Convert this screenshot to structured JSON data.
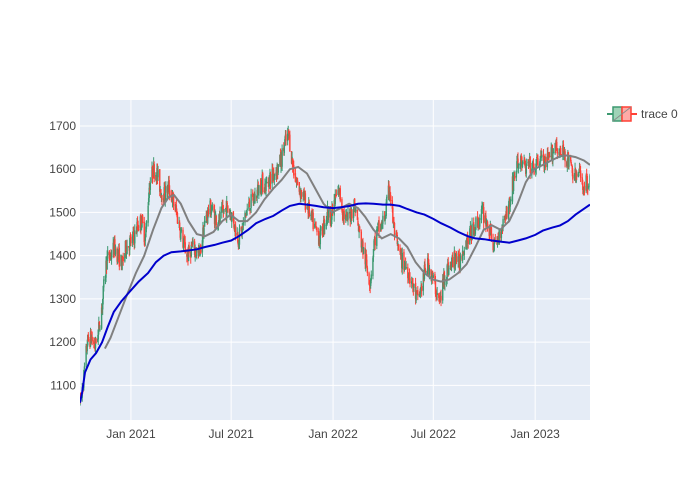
{
  "chart_data": {
    "type": "candlestick",
    "title": "",
    "xlabel": "",
    "ylabel": "",
    "x_range": [
      "2020-10-01",
      "2023-04-10"
    ],
    "ylim": [
      1020,
      1760
    ],
    "grid": true,
    "legend": {
      "position": "top-right",
      "entries": [
        "trace 0"
      ]
    },
    "colors": {
      "increasing": "#3D9970",
      "decreasing": "#FF4136",
      "ma_short": "#808080",
      "ma_long": "#0000CC",
      "plot_bg": "#E5ECF6",
      "grid": "#FFFFFF"
    },
    "x_ticks": [
      {
        "value": "2021-01-01",
        "label": "Jan 2021"
      },
      {
        "value": "2021-07-01",
        "label": "Jul 2021"
      },
      {
        "value": "2022-01-01",
        "label": "Jan 2022"
      },
      {
        "value": "2022-07-01",
        "label": "Jul 2022"
      },
      {
        "value": "2023-01-01",
        "label": "Jan 2023"
      }
    ],
    "y_ticks": [
      1100,
      1200,
      1300,
      1400,
      1500,
      1600,
      1700
    ],
    "series": [
      {
        "name": "trace 0",
        "kind": "ohlc",
        "price_path": [
          [
            "2020-10-01",
            1060
          ],
          [
            "2020-10-07",
            1110
          ],
          [
            "2020-10-14",
            1200
          ],
          [
            "2020-10-21",
            1210
          ],
          [
            "2020-10-28",
            1190
          ],
          [
            "2020-11-04",
            1230
          ],
          [
            "2020-11-11",
            1300
          ],
          [
            "2020-11-18",
            1390
          ],
          [
            "2020-11-25",
            1400
          ],
          [
            "2020-12-02",
            1420
          ],
          [
            "2020-12-09",
            1400
          ],
          [
            "2020-12-16",
            1380
          ],
          [
            "2020-12-23",
            1420
          ],
          [
            "2020-12-30",
            1430
          ],
          [
            "2021-01-06",
            1440
          ],
          [
            "2021-01-13",
            1470
          ],
          [
            "2021-01-20",
            1480
          ],
          [
            "2021-01-27",
            1440
          ],
          [
            "2021-02-03",
            1560
          ],
          [
            "2021-02-10",
            1600
          ],
          [
            "2021-02-17",
            1590
          ],
          [
            "2021-02-24",
            1550
          ],
          [
            "2021-03-03",
            1540
          ],
          [
            "2021-03-10",
            1560
          ],
          [
            "2021-03-17",
            1530
          ],
          [
            "2021-03-24",
            1500
          ],
          [
            "2021-03-31",
            1460
          ],
          [
            "2021-04-07",
            1420
          ],
          [
            "2021-04-14",
            1400
          ],
          [
            "2021-04-21",
            1420
          ],
          [
            "2021-04-28",
            1410
          ],
          [
            "2021-05-05",
            1400
          ],
          [
            "2021-05-12",
            1460
          ],
          [
            "2021-05-19",
            1500
          ],
          [
            "2021-05-26",
            1510
          ],
          [
            "2021-06-02",
            1490
          ],
          [
            "2021-06-09",
            1480
          ],
          [
            "2021-06-16",
            1500
          ],
          [
            "2021-06-23",
            1510
          ],
          [
            "2021-06-30",
            1500
          ],
          [
            "2021-07-07",
            1470
          ],
          [
            "2021-07-14",
            1440
          ],
          [
            "2021-07-21",
            1460
          ],
          [
            "2021-07-28",
            1500
          ],
          [
            "2021-08-04",
            1520
          ],
          [
            "2021-08-11",
            1530
          ],
          [
            "2021-08-18",
            1550
          ],
          [
            "2021-08-25",
            1570
          ],
          [
            "2021-09-01",
            1560
          ],
          [
            "2021-09-08",
            1580
          ],
          [
            "2021-09-15",
            1590
          ],
          [
            "2021-09-22",
            1600
          ],
          [
            "2021-09-29",
            1620
          ],
          [
            "2021-10-06",
            1660
          ],
          [
            "2021-10-13",
            1680
          ],
          [
            "2021-10-20",
            1610
          ],
          [
            "2021-10-27",
            1570
          ],
          [
            "2021-11-03",
            1550
          ],
          [
            "2021-11-10",
            1530
          ],
          [
            "2021-11-17",
            1510
          ],
          [
            "2021-11-24",
            1480
          ],
          [
            "2021-12-01",
            1460
          ],
          [
            "2021-12-08",
            1440
          ],
          [
            "2021-12-15",
            1470
          ],
          [
            "2021-12-22",
            1500
          ],
          [
            "2021-12-29",
            1490
          ],
          [
            "2022-01-05",
            1530
          ],
          [
            "2022-01-12",
            1550
          ],
          [
            "2022-01-19",
            1500
          ],
          [
            "2022-01-26",
            1480
          ],
          [
            "2022-02-02",
            1500
          ],
          [
            "2022-02-09",
            1520
          ],
          [
            "2022-02-16",
            1460
          ],
          [
            "2022-02-23",
            1420
          ],
          [
            "2022-03-02",
            1380
          ],
          [
            "2022-03-09",
            1340
          ],
          [
            "2022-03-16",
            1430
          ],
          [
            "2022-03-23",
            1460
          ],
          [
            "2022-03-30",
            1470
          ],
          [
            "2022-04-06",
            1500
          ],
          [
            "2022-04-13",
            1560
          ],
          [
            "2022-04-20",
            1470
          ],
          [
            "2022-04-27",
            1420
          ],
          [
            "2022-05-04",
            1390
          ],
          [
            "2022-05-11",
            1380
          ],
          [
            "2022-05-18",
            1360
          ],
          [
            "2022-05-25",
            1330
          ],
          [
            "2022-06-01",
            1300
          ],
          [
            "2022-06-08",
            1320
          ],
          [
            "2022-06-15",
            1360
          ],
          [
            "2022-06-22",
            1380
          ],
          [
            "2022-06-29",
            1350
          ],
          [
            "2022-07-06",
            1320
          ],
          [
            "2022-07-13",
            1290
          ],
          [
            "2022-07-20",
            1350
          ],
          [
            "2022-07-27",
            1370
          ],
          [
            "2022-08-03",
            1380
          ],
          [
            "2022-08-10",
            1400
          ],
          [
            "2022-08-17",
            1380
          ],
          [
            "2022-08-24",
            1420
          ],
          [
            "2022-08-31",
            1440
          ],
          [
            "2022-09-07",
            1450
          ],
          [
            "2022-09-14",
            1470
          ],
          [
            "2022-09-21",
            1480
          ],
          [
            "2022-09-28",
            1500
          ],
          [
            "2022-10-05",
            1480
          ],
          [
            "2022-10-12",
            1450
          ],
          [
            "2022-10-19",
            1420
          ],
          [
            "2022-10-26",
            1440
          ],
          [
            "2022-11-02",
            1470
          ],
          [
            "2022-11-09",
            1500
          ],
          [
            "2022-11-16",
            1520
          ],
          [
            "2022-11-23",
            1580
          ],
          [
            "2022-11-30",
            1610
          ],
          [
            "2022-12-07",
            1620
          ],
          [
            "2022-12-14",
            1600
          ],
          [
            "2022-12-21",
            1610
          ],
          [
            "2022-12-28",
            1600
          ],
          [
            "2023-01-04",
            1610
          ],
          [
            "2023-01-11",
            1630
          ],
          [
            "2023-01-18",
            1610
          ],
          [
            "2023-01-25",
            1620
          ],
          [
            "2023-02-01",
            1640
          ],
          [
            "2023-02-08",
            1660
          ],
          [
            "2023-02-15",
            1630
          ],
          [
            "2023-02-22",
            1640
          ],
          [
            "2023-03-01",
            1620
          ],
          [
            "2023-03-08",
            1600
          ],
          [
            "2023-03-15",
            1580
          ],
          [
            "2023-03-22",
            1590
          ],
          [
            "2023-03-29",
            1560
          ],
          [
            "2023-04-05",
            1570
          ],
          [
            "2023-04-10",
            1580
          ]
        ]
      },
      {
        "name": "",
        "kind": "line",
        "color": "#808080",
        "points": [
          [
            "2020-11-15",
            1185
          ],
          [
            "2020-11-25",
            1210
          ],
          [
            "2020-12-10",
            1260
          ],
          [
            "2020-12-25",
            1310
          ],
          [
            "2021-01-10",
            1360
          ],
          [
            "2021-01-25",
            1400
          ],
          [
            "2021-02-10",
            1460
          ],
          [
            "2021-02-25",
            1510
          ],
          [
            "2021-03-10",
            1535
          ],
          [
            "2021-03-20",
            1540
          ],
          [
            "2021-04-01",
            1520
          ],
          [
            "2021-04-15",
            1480
          ],
          [
            "2021-04-30",
            1450
          ],
          [
            "2021-05-15",
            1445
          ],
          [
            "2021-05-30",
            1455
          ],
          [
            "2021-06-15",
            1480
          ],
          [
            "2021-06-30",
            1495
          ],
          [
            "2021-07-15",
            1480
          ],
          [
            "2021-07-30",
            1480
          ],
          [
            "2021-08-15",
            1500
          ],
          [
            "2021-08-30",
            1530
          ],
          [
            "2021-09-15",
            1555
          ],
          [
            "2021-09-30",
            1575
          ],
          [
            "2021-10-15",
            1600
          ],
          [
            "2021-10-30",
            1605
          ],
          [
            "2021-11-15",
            1590
          ],
          [
            "2021-11-30",
            1555
          ],
          [
            "2021-12-15",
            1520
          ],
          [
            "2021-12-30",
            1500
          ],
          [
            "2022-01-15",
            1510
          ],
          [
            "2022-01-30",
            1520
          ],
          [
            "2022-02-15",
            1510
          ],
          [
            "2022-02-28",
            1490
          ],
          [
            "2022-03-15",
            1460
          ],
          [
            "2022-03-30",
            1440
          ],
          [
            "2022-04-15",
            1450
          ],
          [
            "2022-04-30",
            1440
          ],
          [
            "2022-05-15",
            1420
          ],
          [
            "2022-05-30",
            1385
          ],
          [
            "2022-06-15",
            1360
          ],
          [
            "2022-06-30",
            1345
          ],
          [
            "2022-07-15",
            1340
          ],
          [
            "2022-07-30",
            1345
          ],
          [
            "2022-08-15",
            1360
          ],
          [
            "2022-08-30",
            1380
          ],
          [
            "2022-09-15",
            1420
          ],
          [
            "2022-09-30",
            1460
          ],
          [
            "2022-10-15",
            1470
          ],
          [
            "2022-10-30",
            1460
          ],
          [
            "2022-11-15",
            1480
          ],
          [
            "2022-11-30",
            1520
          ],
          [
            "2022-12-15",
            1570
          ],
          [
            "2022-12-30",
            1600
          ],
          [
            "2023-01-15",
            1610
          ],
          [
            "2023-01-30",
            1620
          ],
          [
            "2023-02-15",
            1630
          ],
          [
            "2023-02-28",
            1632
          ],
          [
            "2023-03-15",
            1628
          ],
          [
            "2023-03-30",
            1620
          ],
          [
            "2023-04-10",
            1610
          ]
        ]
      },
      {
        "name": "",
        "kind": "line",
        "color": "#0000CC",
        "points": [
          [
            "2020-10-01",
            1060
          ],
          [
            "2020-10-05",
            1085
          ],
          [
            "2020-10-10",
            1130
          ],
          [
            "2020-10-20",
            1160
          ],
          [
            "2020-10-30",
            1175
          ],
          [
            "2020-11-10",
            1200
          ],
          [
            "2020-11-20",
            1235
          ],
          [
            "2020-12-01",
            1270
          ],
          [
            "2020-12-15",
            1295
          ],
          [
            "2021-01-01",
            1320
          ],
          [
            "2021-01-15",
            1340
          ],
          [
            "2021-02-01",
            1360
          ],
          [
            "2021-02-15",
            1385
          ],
          [
            "2021-03-01",
            1400
          ],
          [
            "2021-03-15",
            1408
          ],
          [
            "2021-04-01",
            1410
          ],
          [
            "2021-04-15",
            1412
          ],
          [
            "2021-05-01",
            1415
          ],
          [
            "2021-05-15",
            1420
          ],
          [
            "2021-06-01",
            1425
          ],
          [
            "2021-06-15",
            1430
          ],
          [
            "2021-07-01",
            1435
          ],
          [
            "2021-07-15",
            1445
          ],
          [
            "2021-08-01",
            1460
          ],
          [
            "2021-08-15",
            1475
          ],
          [
            "2021-09-01",
            1485
          ],
          [
            "2021-09-15",
            1492
          ],
          [
            "2021-10-01",
            1505
          ],
          [
            "2021-10-15",
            1515
          ],
          [
            "2021-11-01",
            1520
          ],
          [
            "2021-11-15",
            1518
          ],
          [
            "2021-12-01",
            1515
          ],
          [
            "2021-12-15",
            1512
          ],
          [
            "2022-01-01",
            1510
          ],
          [
            "2022-01-15",
            1512
          ],
          [
            "2022-02-01",
            1515
          ],
          [
            "2022-02-15",
            1520
          ],
          [
            "2022-03-01",
            1521
          ],
          [
            "2022-03-15",
            1520
          ],
          [
            "2022-04-01",
            1518
          ],
          [
            "2022-04-15",
            1518
          ],
          [
            "2022-05-01",
            1515
          ],
          [
            "2022-05-15",
            1508
          ],
          [
            "2022-06-01",
            1500
          ],
          [
            "2022-06-15",
            1495
          ],
          [
            "2022-07-01",
            1485
          ],
          [
            "2022-07-15",
            1475
          ],
          [
            "2022-08-01",
            1465
          ],
          [
            "2022-08-15",
            1455
          ],
          [
            "2022-09-01",
            1445
          ],
          [
            "2022-09-15",
            1440
          ],
          [
            "2022-10-01",
            1438
          ],
          [
            "2022-10-15",
            1435
          ],
          [
            "2022-11-01",
            1432
          ],
          [
            "2022-11-15",
            1430
          ],
          [
            "2022-12-01",
            1435
          ],
          [
            "2022-12-15",
            1440
          ],
          [
            "2023-01-01",
            1448
          ],
          [
            "2023-01-15",
            1458
          ],
          [
            "2023-02-01",
            1465
          ],
          [
            "2023-02-15",
            1470
          ],
          [
            "2023-03-01",
            1480
          ],
          [
            "2023-03-15",
            1495
          ],
          [
            "2023-04-01",
            1510
          ],
          [
            "2023-04-10",
            1518
          ]
        ]
      }
    ]
  }
}
